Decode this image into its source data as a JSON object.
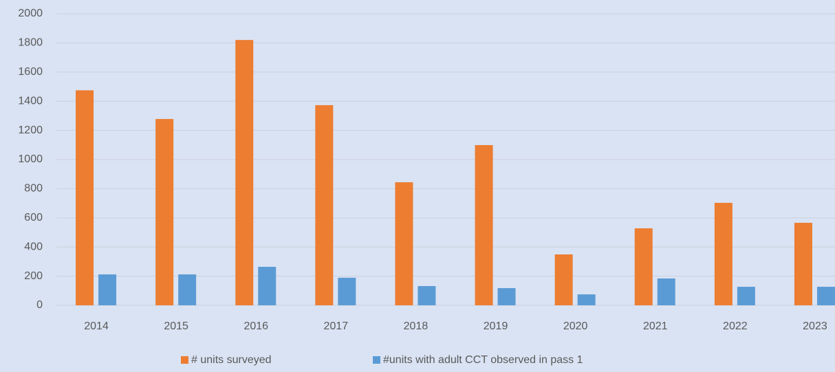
{
  "chart_data": {
    "type": "bar",
    "categories": [
      "2014",
      "2015",
      "2016",
      "2017",
      "2018",
      "2019",
      "2020",
      "2021",
      "2022",
      "2023"
    ],
    "series": [
      {
        "name": "# units surveyed",
        "color": "#ed7d31",
        "values": [
          1475,
          1278,
          1820,
          1373,
          844,
          1099,
          349,
          528,
          703,
          566
        ]
      },
      {
        "name": "#units with adult CCT observed in pass 1",
        "color": "#5b9bd5",
        "values": [
          212,
          212,
          264,
          189,
          132,
          118,
          75,
          184,
          127,
          127
        ]
      }
    ],
    "ylim": [
      0,
      2000
    ],
    "yticks": [
      0,
      200,
      400,
      600,
      800,
      1000,
      1200,
      1400,
      1600,
      1800,
      2000
    ],
    "grid": true,
    "legend": "bottom"
  }
}
